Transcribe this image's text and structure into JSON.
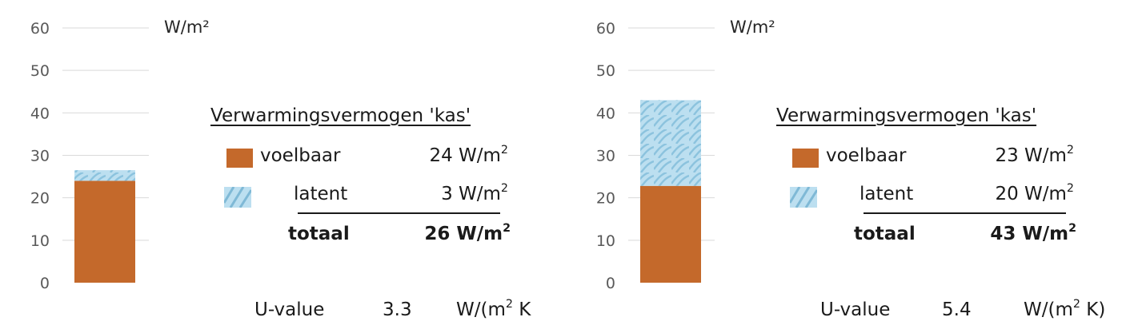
{
  "colors": {
    "voelbaar": "#c4692b",
    "latent": "#bcdff0",
    "grid": "#d9d9d9"
  },
  "chart_data": [
    {
      "type": "bar",
      "ylabel": "W/m²",
      "ylim": [
        0,
        60
      ],
      "yticks": [
        0,
        10,
        20,
        30,
        40,
        50,
        60
      ],
      "tick_labels": [
        "0",
        "10",
        "20",
        "30",
        "40",
        "50",
        "60"
      ],
      "stacked": true,
      "series": [
        {
          "name": "voelbaar",
          "values": [
            24
          ]
        },
        {
          "name": "latent",
          "values": [
            2.5
          ]
        }
      ],
      "legend": {
        "title": "Verwarmingsvermogen 'kas'",
        "rows": [
          {
            "label": "voelbaar",
            "value": "24 W/m",
            "sup": "2"
          },
          {
            "label": "latent",
            "value": "3 W/m",
            "sup": "2"
          }
        ],
        "total_label": "totaal",
        "total_value": "26 W/m",
        "total_sup": "2"
      },
      "u_value": {
        "label": "U-value",
        "value": "3.3",
        "unit_pre": "W/(m",
        "unit_sup": "2",
        "unit_post": " K"
      }
    },
    {
      "type": "bar",
      "ylabel": "W/m²",
      "ylim": [
        0,
        60
      ],
      "yticks": [
        0,
        10,
        20,
        30,
        40,
        50,
        60
      ],
      "tick_labels": [
        "0",
        "10",
        "20",
        "30",
        "40",
        "50",
        "60"
      ],
      "stacked": true,
      "series": [
        {
          "name": "voelbaar",
          "values": [
            22.8
          ]
        },
        {
          "name": "latent",
          "values": [
            20.2
          ]
        }
      ],
      "legend": {
        "title": "Verwarmingsvermogen 'kas'",
        "rows": [
          {
            "label": "voelbaar",
            "value": "23 W/m",
            "sup": "2"
          },
          {
            "label": "latent",
            "value": "20 W/m",
            "sup": "2"
          }
        ],
        "total_label": "totaal",
        "total_value": "43 W/m",
        "total_sup": "2"
      },
      "u_value": {
        "label": "U-value",
        "value": "5.4",
        "unit_pre": "W/(m",
        "unit_sup": "2",
        "unit_post": " K)"
      }
    }
  ]
}
